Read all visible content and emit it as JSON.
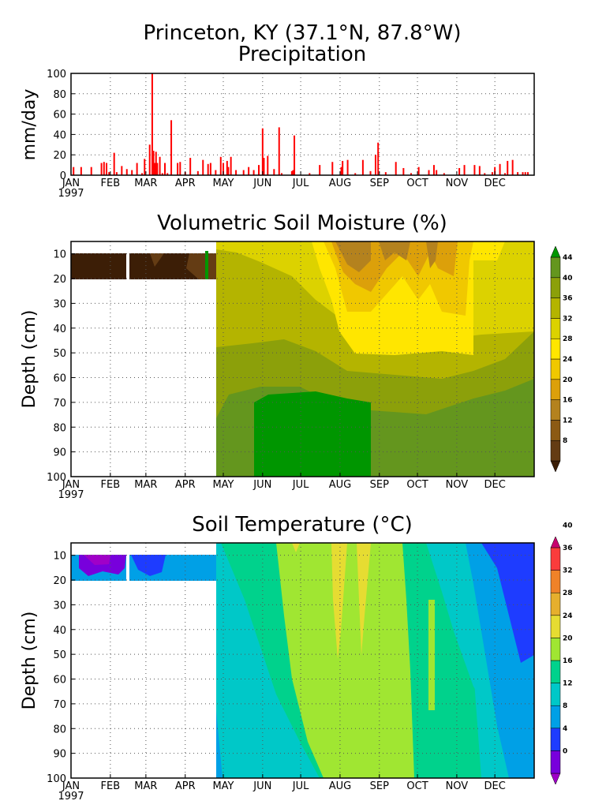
{
  "header": {
    "title": "Princeton, KY  (37.1°N, 87.8°W)"
  },
  "months": [
    "JAN",
    "FEB",
    "MAR",
    "APR",
    "MAY",
    "JUN",
    "JUL",
    "AUG",
    "SEP",
    "OCT",
    "NOV",
    "DEC"
  ],
  "year": "1997",
  "chart_data": [
    {
      "type": "bar",
      "title": "Precipitation",
      "ylabel": "mm/day",
      "ylim": [
        0,
        100
      ],
      "yticks": [
        0,
        20,
        40,
        60,
        80,
        100
      ],
      "grid": true,
      "color": "#ff0000",
      "x_unit": "day of year 1997",
      "series": [
        {
          "x": [
            2,
            8,
            16,
            24,
            26,
            28,
            30,
            34,
            36,
            40,
            44,
            48,
            52,
            56,
            58,
            62,
            64,
            65,
            66,
            67,
            68,
            70,
            72,
            74,
            76,
            79,
            84,
            86,
            90,
            94,
            100,
            104,
            108,
            110,
            114,
            118,
            120,
            123,
            124,
            126,
            130,
            136,
            140,
            144,
            148,
            151,
            152,
            155,
            160,
            164,
            166,
            174,
            175,
            176,
            188,
            196,
            206,
            213,
            214,
            218,
            224,
            230,
            236,
            240,
            242,
            248,
            256,
            262,
            268,
            274,
            282,
            286,
            288,
            294,
            306,
            310,
            318,
            322,
            326,
            332,
            334,
            338,
            342,
            344,
            348,
            352,
            356,
            358,
            360
          ],
          "values": [
            8,
            8,
            8,
            12,
            13,
            12,
            3,
            22,
            3,
            9,
            6,
            5,
            12,
            2,
            16,
            30,
            100,
            24,
            12,
            23,
            12,
            18,
            2,
            12,
            2,
            54,
            12,
            13,
            3,
            17,
            4,
            15,
            11,
            12,
            5,
            18,
            12,
            14,
            8,
            18,
            5,
            5,
            8,
            5,
            10,
            46,
            17,
            19,
            6,
            47,
            2,
            4,
            5,
            39,
            2,
            10,
            13,
            8,
            14,
            15,
            2,
            15,
            4,
            20,
            32,
            3,
            13,
            7,
            2,
            8,
            5,
            10,
            5,
            2,
            7,
            10,
            10,
            9,
            2,
            3,
            8,
            11,
            2,
            14,
            15,
            3,
            3,
            3,
            3
          ]
        }
      ]
    },
    {
      "type": "heatmap",
      "title": "Volumetric Soil Moisture (%)",
      "ylabel": "Depth (cm)",
      "ylim": [
        100,
        5
      ],
      "yticks": [
        10,
        20,
        30,
        40,
        50,
        60,
        70,
        80,
        90,
        100
      ],
      "grid": true,
      "colorbar_ticks": [
        "8",
        "12",
        "16",
        "20",
        "24",
        "28",
        "32",
        "36",
        "40",
        "44"
      ],
      "colorbar_colors": [
        "#3c1e06",
        "#643c14",
        "#8c5a14",
        "#b4821e",
        "#dca00a",
        "#f0c800",
        "#ffe600",
        "#dcd200",
        "#b4b400",
        "#8ca00a",
        "#64961e",
        "#009600"
      ]
    },
    {
      "type": "heatmap",
      "title": "Soil Temperature (°C)",
      "ylabel": "Depth (cm)",
      "ylim": [
        100,
        5
      ],
      "yticks": [
        10,
        20,
        30,
        40,
        50,
        60,
        70,
        80,
        90,
        100
      ],
      "grid": true,
      "colorbar_ticks": [
        "0",
        "4",
        "8",
        "12",
        "16",
        "20",
        "24",
        "28",
        "32",
        "36",
        "40"
      ],
      "colorbar_colors": [
        "#a000c8",
        "#7800dc",
        "#1e3cff",
        "#00a0e6",
        "#00c8c8",
        "#00d28c",
        "#a0e632",
        "#e6dc32",
        "#e6af2d",
        "#f08228",
        "#fa3c3c",
        "#c8006e"
      ]
    }
  ]
}
